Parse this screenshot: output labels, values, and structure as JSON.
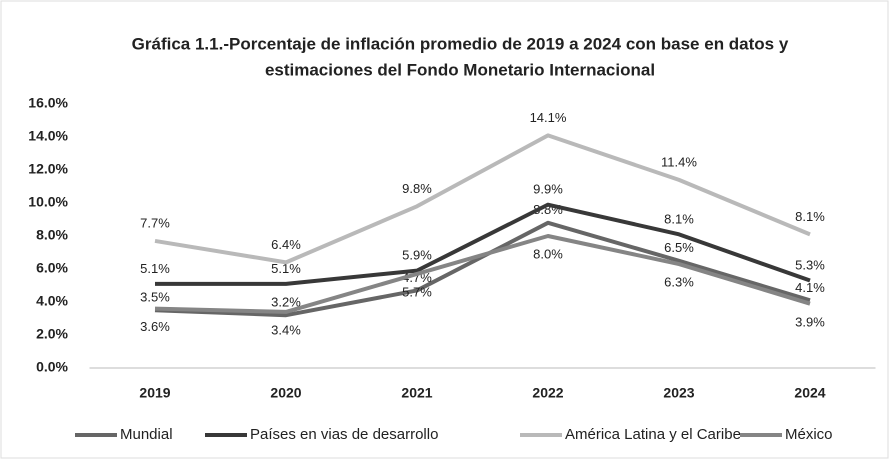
{
  "chart_data": {
    "type": "line",
    "title": [
      "Gráfica 1.1.-Porcentaje de inflación promedio de 2019 a 2024 con base en datos y",
      "estimaciones del Fondo Monetario Internacional"
    ],
    "categories": [
      "2019",
      "2020",
      "2021",
      "2022",
      "2023",
      "2024"
    ],
    "ylim": [
      0,
      16
    ],
    "yticks": [
      {
        "value": 0,
        "label": "0.0%"
      },
      {
        "value": 2,
        "label": "2.0%"
      },
      {
        "value": 4,
        "label": "4.0%"
      },
      {
        "value": 6,
        "label": "6.0%"
      },
      {
        "value": 8,
        "label": "8.0%"
      },
      {
        "value": 10,
        "label": "10.0%"
      },
      {
        "value": 12,
        "label": "12.0%"
      },
      {
        "value": 14,
        "label": "14.0%"
      },
      {
        "value": 16,
        "label": "16.0%"
      }
    ],
    "grid": false,
    "series": [
      {
        "name": "Mundial",
        "color": "#666666",
        "values": [
          3.5,
          3.2,
          4.7,
          8.8,
          6.5,
          4.1
        ],
        "value_labels": [
          "3.5%",
          "3.2%",
          "4.7%",
          "8.8%",
          "6.5%",
          "4.1%"
        ]
      },
      {
        "name": "Países en vias de desarrollo",
        "color": "#383838",
        "values": [
          5.1,
          5.1,
          5.9,
          9.9,
          8.1,
          5.3
        ],
        "value_labels": [
          "5.1%",
          "5.1%",
          "5.9%",
          "9.9%",
          "8.1%",
          "5.3%"
        ]
      },
      {
        "name": "América Latina y el Caribe",
        "color": "#b9b9b9",
        "values": [
          7.7,
          6.4,
          9.8,
          14.1,
          11.4,
          8.1
        ],
        "value_labels": [
          "7.7%",
          "6.4%",
          "9.8%",
          "14.1%",
          "11.4%",
          "8.1%"
        ]
      },
      {
        "name": "México",
        "color": "#858585",
        "values": [
          3.6,
          3.4,
          5.7,
          8.0,
          6.3,
          3.9
        ],
        "value_labels": [
          "3.6%",
          "3.4%",
          "5.7%",
          "8.0%",
          "6.3%",
          "3.9%"
        ]
      }
    ]
  }
}
